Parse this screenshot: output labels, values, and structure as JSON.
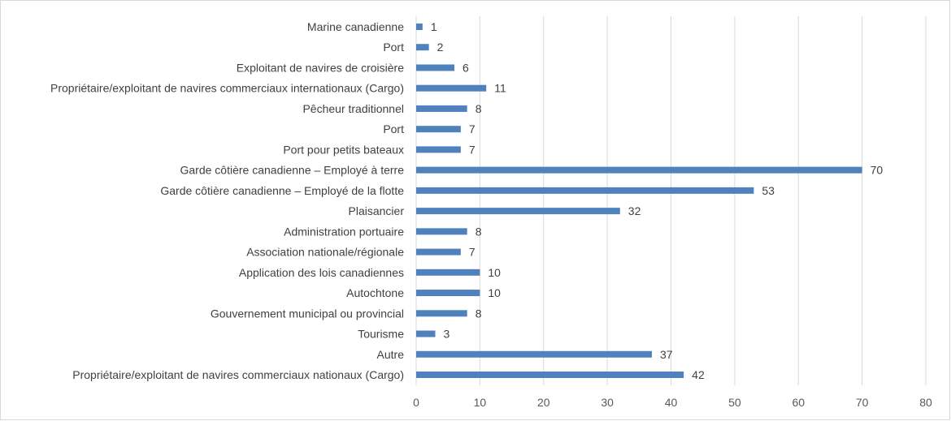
{
  "chart_data": {
    "type": "bar",
    "orientation": "horizontal",
    "categories": [
      "Marine canadienne",
      "Port",
      "Exploitant de navires de croisière",
      "Propriétaire/exploitant de navires commerciaux internationaux (Cargo)",
      "Pêcheur traditionnel",
      "Port",
      "Port pour petits bateaux",
      "Garde côtière canadienne – Employé à terre",
      "Garde côtière canadienne – Employé de la flotte",
      "Plaisancier",
      "Administration portuaire",
      "Association nationale/régionale",
      "Application des lois canadiennes",
      "Autochtone",
      "Gouvernement municipal ou provincial",
      "Tourisme",
      "Autre",
      "Propriétaire/exploitant de navires commerciaux nationaux (Cargo)"
    ],
    "values": [
      1,
      2,
      6,
      11,
      8,
      7,
      7,
      70,
      53,
      32,
      8,
      7,
      10,
      10,
      8,
      3,
      37,
      42
    ],
    "xlim": [
      0,
      80
    ],
    "xticks": [
      0,
      10,
      20,
      30,
      40,
      50,
      60,
      70,
      80
    ],
    "grid": true,
    "data_labels": true,
    "bar_color": "#4f81bd",
    "title": "",
    "xlabel": "",
    "ylabel": ""
  }
}
